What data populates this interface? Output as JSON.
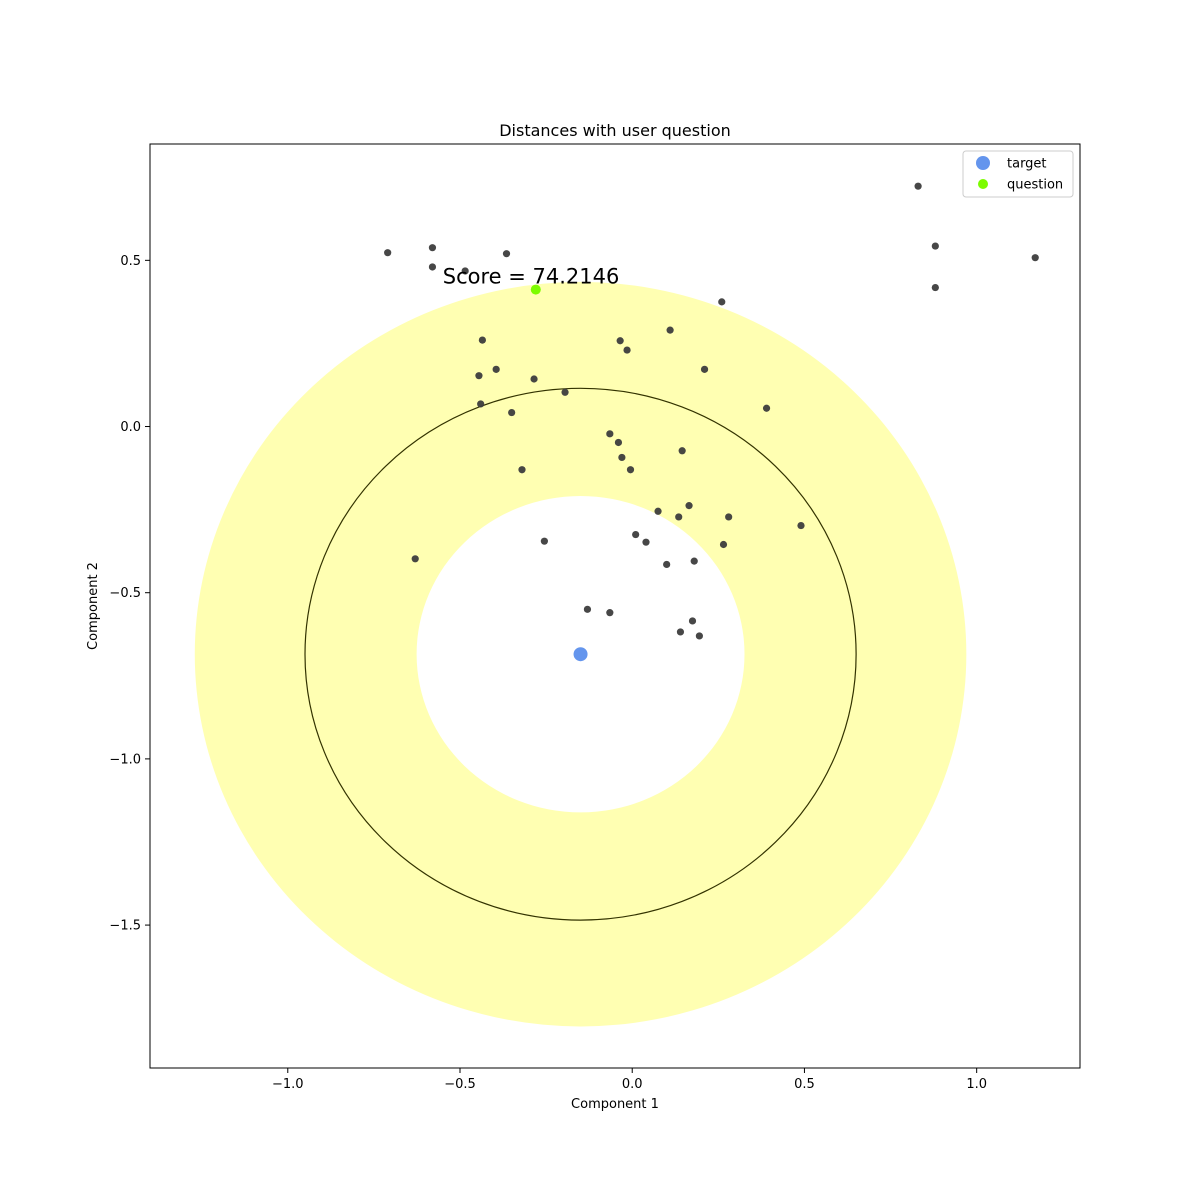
{
  "chart_data": {
    "type": "scatter",
    "title": "Distances with user question",
    "xlabel": "Component 1",
    "ylabel": "Component 2",
    "xlim": [
      -1.4,
      1.3
    ],
    "ylim": [
      -1.93,
      0.85
    ],
    "x_ticks": [
      -1.0,
      -0.5,
      0.0,
      0.5,
      1.0
    ],
    "x_tick_labels": [
      "−1.0",
      "−0.5",
      "0.0",
      "0.5",
      "1.0"
    ],
    "y_ticks": [
      0.5,
      0.0,
      -0.5,
      -1.0,
      -1.5
    ],
    "y_tick_labels": [
      "0.5",
      "0.0",
      "−0.5",
      "−1.0",
      "−1.5"
    ],
    "grid": false,
    "legend_position": "top-right",
    "annotation": {
      "text": "Score = 74.2146",
      "x": -0.55,
      "y": 0.43
    },
    "rings": {
      "center": [
        -0.15,
        -0.685
      ],
      "outer_radius": 1.12,
      "inner_radius": 0.476,
      "mid_circle_radius": 0.8,
      "fill_color": "#ffff66",
      "fill_alpha": 0.5,
      "circle_color": "#333300"
    },
    "series": [
      {
        "name": "target",
        "color": "#6495ed",
        "points": [
          [
            -0.15,
            -0.685
          ]
        ]
      },
      {
        "name": "question",
        "color": "#7cfc00",
        "points": [
          [
            -0.28,
            0.412
          ]
        ]
      },
      {
        "color": "#3d3d3d",
        "points": [
          [
            -0.71,
            0.523
          ],
          [
            -0.58,
            0.538
          ],
          [
            -0.58,
            0.48
          ],
          [
            -0.485,
            0.468
          ],
          [
            -0.365,
            0.52
          ],
          [
            0.26,
            0.375
          ],
          [
            0.83,
            0.723
          ],
          [
            0.88,
            0.543
          ],
          [
            0.88,
            0.418
          ],
          [
            1.17,
            0.508
          ],
          [
            -0.435,
            0.26
          ],
          [
            -0.445,
            0.153
          ],
          [
            -0.395,
            0.172
          ],
          [
            -0.285,
            0.143
          ],
          [
            -0.44,
            0.068
          ],
          [
            -0.35,
            0.042
          ],
          [
            -0.195,
            0.103
          ],
          [
            -0.035,
            0.258
          ],
          [
            -0.015,
            0.23
          ],
          [
            0.11,
            0.29
          ],
          [
            0.21,
            0.172
          ],
          [
            0.39,
            0.055
          ],
          [
            -0.065,
            -0.022
          ],
          [
            -0.04,
            -0.048
          ],
          [
            -0.03,
            -0.093
          ],
          [
            -0.005,
            -0.13
          ],
          [
            0.145,
            -0.073
          ],
          [
            -0.32,
            -0.13
          ],
          [
            0.075,
            -0.255
          ],
          [
            0.135,
            -0.272
          ],
          [
            0.165,
            -0.238
          ],
          [
            0.28,
            -0.272
          ],
          [
            0.265,
            -0.355
          ],
          [
            0.49,
            -0.298
          ],
          [
            -0.63,
            -0.398
          ],
          [
            -0.255,
            -0.345
          ],
          [
            0.01,
            -0.325
          ],
          [
            0.04,
            -0.348
          ],
          [
            0.1,
            -0.415
          ],
          [
            0.18,
            -0.405
          ],
          [
            -0.13,
            -0.55
          ],
          [
            -0.065,
            -0.56
          ],
          [
            0.175,
            -0.585
          ],
          [
            0.14,
            -0.618
          ],
          [
            0.195,
            -0.63
          ]
        ]
      }
    ]
  }
}
